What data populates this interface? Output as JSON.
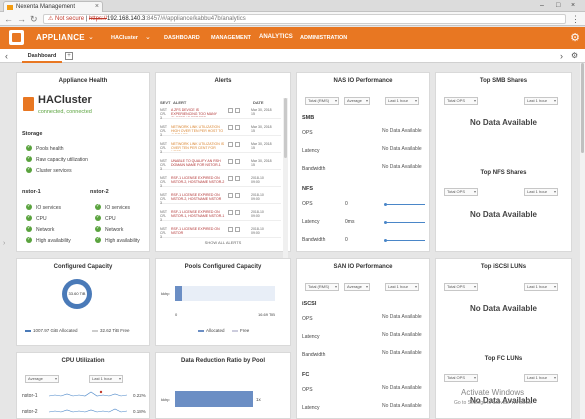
{
  "browser": {
    "tab_title": "Nexenta Management",
    "url_warning": "Not secure",
    "url_scheme": "https://",
    "url_host": "192.168.140.3",
    "url_path": ":8457/#/appliance/kabbu47b/analytics"
  },
  "appbar": {
    "app_name": "APPLIANCE",
    "menu": [
      "HACluster",
      "DASHBOARD",
      "MANAGEMENT",
      "ANALYTICS",
      "ADMINISTRATION"
    ],
    "active": "ANALYTICS"
  },
  "subbar": {
    "tab": "Dashboard"
  },
  "health": {
    "title": "Appliance Health",
    "cluster_name": "HACluster",
    "cluster_status": "connected, connected",
    "storage_label": "Storage",
    "storage_items": [
      "Pools health",
      "Raw capacity utilization",
      "Cluster services"
    ],
    "node1": "nstor-1",
    "node2": "nstor-2",
    "node_items": [
      "IO services",
      "CPU",
      "Network",
      "High availability"
    ]
  },
  "alerts": {
    "title": "Alerts",
    "col_sev": "SEVT",
    "col_alert": "ALERT",
    "col_date": "DATE",
    "rows": [
      {
        "sev": "NST CR-3",
        "msg": "A ZFS DEVICE IS EXPERIENCING TOO MANY CLOSED IO ERRORS",
        "tone": "red",
        "date": "Mar 30, 2018 15"
      },
      {
        "sev": "NST CR-3",
        "msg": "NETWORK LINK UTILIZATION HIGH OVER TEN PER HOST TO AVERAGE",
        "tone": "orange",
        "date": "Mar 30, 2018 15"
      },
      {
        "sev": "NST CR-3",
        "msg": "NETWORK LINK UTILIZATION IS OVER TEN PER CENT FOR HOST",
        "tone": "orange",
        "date": "Mar 30, 2018 15"
      },
      {
        "sev": "NST CR-3",
        "msg": "UNABLE TO QUALIFY AN RSH DOMAIN NAME FOR NSTOR-1",
        "tone": "red",
        "date": "Mar 30, 2018 15"
      },
      {
        "sev": "NST CR-3",
        "msg": "RSF-1 LICENSE EXPIRED ON NSTOR-2, HOSTNAME NSTOR-2",
        "tone": "red",
        "date": "2018-10 09:00"
      },
      {
        "sev": "NST CR-3",
        "msg": "RSF-1 LICENSE EXPIRED ON NSTOR-2, HOSTNAME NSTOR",
        "tone": "red",
        "date": "2018-10 09:00"
      },
      {
        "sev": "NST CR-3",
        "msg": "RSF-1 LICENSE EXPIRED ON NSTOR-1, HOSTNAME NSTOR-1",
        "tone": "red",
        "date": "2018-10 09:00"
      },
      {
        "sev": "NST CR-3",
        "msg": "RSF-1 LICENSE EXPIRED ON NSTOR",
        "tone": "red",
        "date": "2018-10 09:00"
      }
    ],
    "show_all": "SHOW ALL ALERTS"
  },
  "nas": {
    "title": "NAS IO Performance",
    "dd1": "Total (RMS)",
    "dd2": "Average",
    "dd3": "Last 1 hour",
    "smb": "SMB",
    "nfs": "NFS",
    "ops": "OPS",
    "latency": "Latency",
    "bandwidth": "Bandwidth",
    "no_data": "No Data Available",
    "nfs_ops_val": "0",
    "nfs_lat_val": "0ms",
    "nfs_bw_val": "0"
  },
  "top_smb": {
    "title": "Top SMB Shares",
    "dd1": "Total OPS",
    "dd2": "Last 1 hour",
    "no_data": "No Data Available"
  },
  "top_nfs": {
    "title": "Top NFS Shares",
    "dd1": "Total OPS",
    "dd2": "Last 1 hour",
    "no_data": "No Data Available"
  },
  "configured": {
    "title": "Configured Capacity",
    "center_label": "33.60 TiB",
    "allocated": "1007.97 GiB Allocated",
    "free": "32.62 TiB Free",
    "allocated_color": "#4a7ab8",
    "free_color": "#e0e0e0"
  },
  "pools": {
    "title": "Pools Configured Capacity",
    "pool_name": "kkhp",
    "axis_min": "0",
    "axis_max": "16.69 TiB",
    "allocated": "Allocated",
    "free": "Free",
    "allocated_fraction": 0.07
  },
  "san": {
    "title": "SAN IO Performance",
    "dd1": "Total (RMS)",
    "dd2": "Average",
    "dd3": "Last 1 hour",
    "iscsi": "iSCSI",
    "fc": "FC",
    "ops": "OPS",
    "latency": "Latency",
    "bandwidth": "Bandwidth",
    "no_data": "No Data Available"
  },
  "top_iscsi": {
    "title": "Top iSCSI LUNs",
    "dd1": "Total OPS",
    "dd2": "Last 1 hour",
    "no_data": "No Data Available"
  },
  "top_fc": {
    "title": "Top FC LUNs",
    "dd1": "Total OPS",
    "dd2": "Last 1 hour",
    "no_data": "No Data Available"
  },
  "cpu": {
    "title": "CPU Utilization",
    "dd1": "Average",
    "dd2": "Last 1 hour",
    "node1": "nstor-1",
    "node2": "nstor-2",
    "val1": "0.22%",
    "val2": "0.18%"
  },
  "reduction": {
    "title": "Data Reduction Ratio by Pool",
    "pool_name": "kkhp",
    "value": "1x"
  },
  "watermark": {
    "line1": "Activate Windows",
    "line2": "Go to Settings to activate Windows."
  }
}
